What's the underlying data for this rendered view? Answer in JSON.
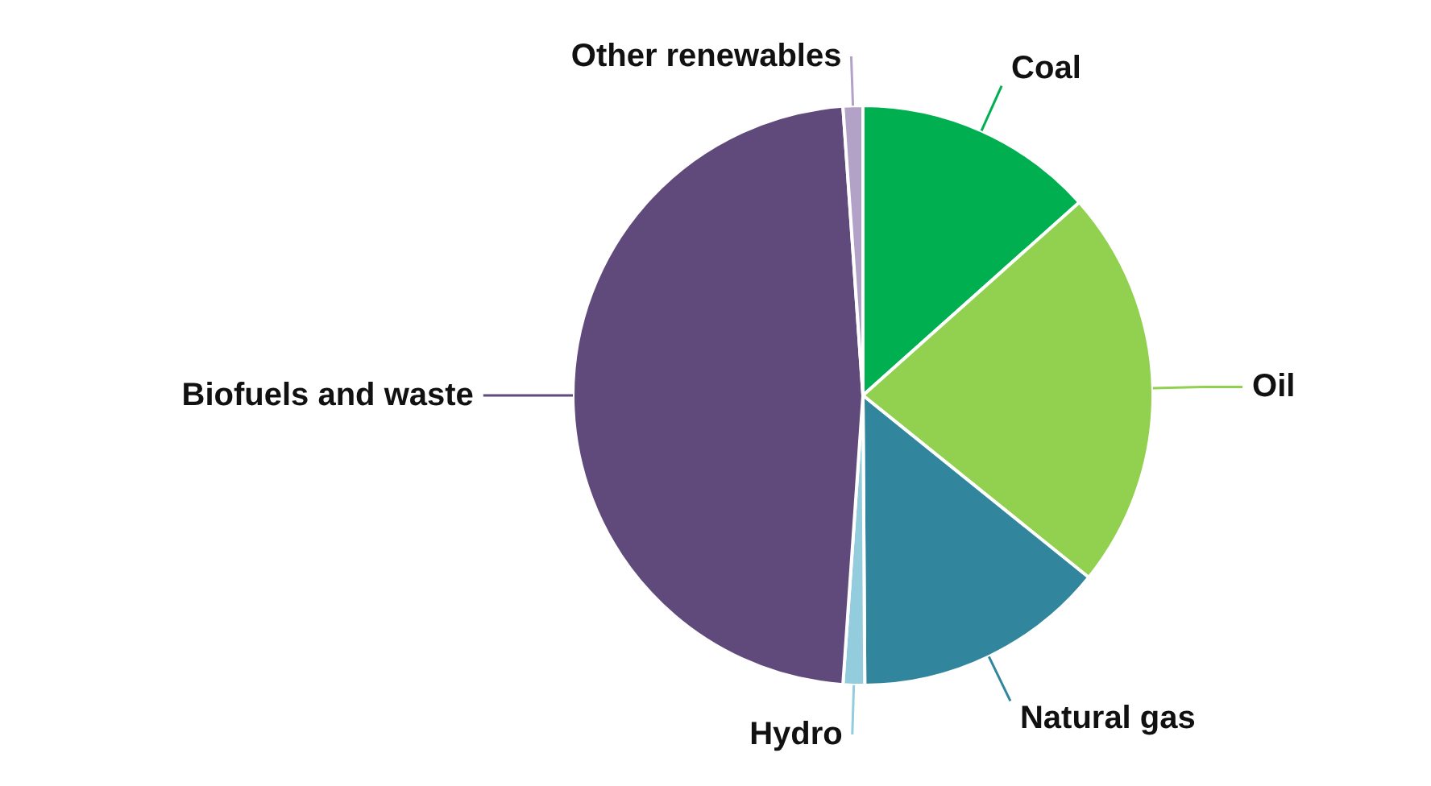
{
  "chart_data": {
    "type": "pie",
    "categories": [
      "Coal",
      "Oil",
      "Natural gas",
      "Hydro",
      "Biofuels and waste",
      "Other renewables"
    ],
    "values": [
      13.4,
      22.4,
      14.1,
      1.2,
      47.8,
      1.1
    ],
    "colors": [
      "#00b050",
      "#92d050",
      "#31859c",
      "#93cddd",
      "#604a7b",
      "#b3a2c7"
    ]
  }
}
